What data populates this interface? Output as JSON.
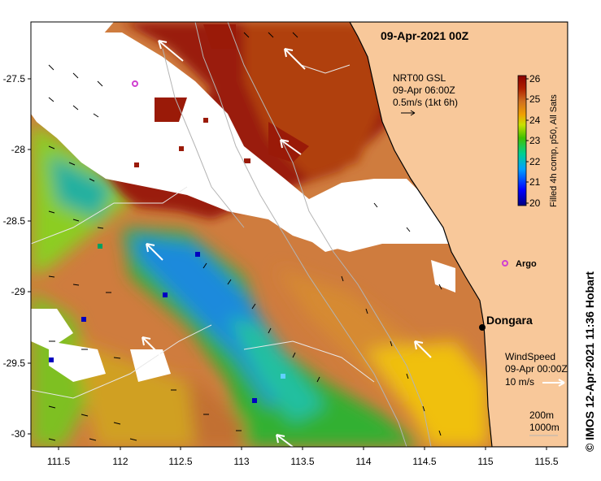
{
  "map": {
    "title": "09-Apr-2021 00Z",
    "x_ticks": [
      "111.5",
      "112",
      "112.5",
      "113",
      "113.5",
      "114",
      "114.5",
      "115",
      "115.5"
    ],
    "y_ticks": [
      "-27.5",
      "-28",
      "-28.5",
      "-29",
      "-29.5",
      "-30"
    ],
    "x_range": [
      111.28,
      115.6
    ],
    "y_range": [
      -30.1,
      -27.1
    ],
    "colors": {
      "land": "#f8c89a",
      "cloud": "#ffffff",
      "coast": "#000000",
      "contour": "#b4b4b4",
      "marker": "#d040d0"
    }
  },
  "current_legend": {
    "line1": "NRT00 GSL",
    "line2": "09-Apr 06:00Z",
    "line3": "0.5m/s (1kt 6h)"
  },
  "colorbar": {
    "ticks": [
      "26",
      "25",
      "24",
      "23",
      "22",
      "21",
      "20"
    ],
    "range": [
      20,
      26
    ],
    "caption": "Filled 4h comp, p50, All Sats"
  },
  "places": {
    "argo": "Argo",
    "dongara": "Dongara"
  },
  "wind_legend": {
    "line1": "WindSpeed",
    "line2": "09-Apr 00:00Z",
    "speed": "10 m/s"
  },
  "contour_legend": {
    "line1": "200m",
    "line2": "1000m"
  },
  "credit": "©  IMOS 12-Apr-2021 11:36 Hobart"
}
